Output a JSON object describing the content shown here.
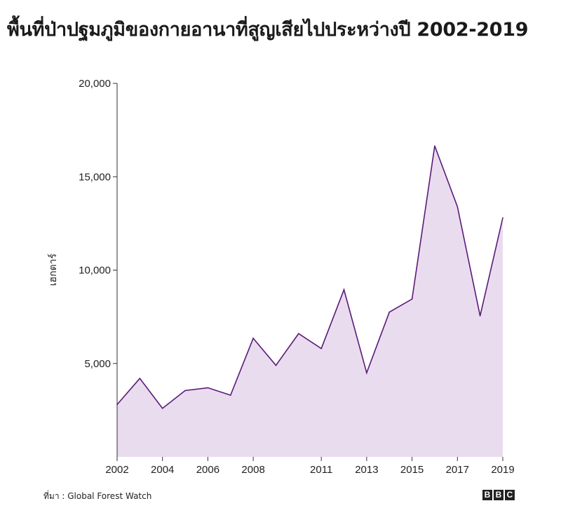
{
  "title": "พื้นที่ป่าปฐมภูมิของกายอานาที่สูญเสียไปประหว่างปี 2002-2019",
  "source": "ที่มา : Global Forest Watch",
  "logo": [
    "B",
    "B",
    "C"
  ],
  "colors": {
    "line": "#5b1a78",
    "fill": "#e9dcee",
    "axis": "#333333"
  },
  "chart_data": {
    "type": "area",
    "x": [
      2002,
      2003,
      2004,
      2005,
      2006,
      2007,
      2008,
      2009,
      2010,
      2011,
      2012,
      2013,
      2014,
      2015,
      2016,
      2017,
      2018,
      2019
    ],
    "values": [
      2800,
      4200,
      2600,
      3550,
      3700,
      3300,
      6350,
      4900,
      6600,
      5800,
      8950,
      4500,
      7750,
      8450,
      16650,
      13400,
      7550,
      12800
    ],
    "ylabel": "เฮกตาร์",
    "xlabel": "",
    "xlim": [
      2002,
      2019
    ],
    "ylim": [
      0,
      20000
    ],
    "yticks": [
      5000,
      10000,
      15000,
      20000
    ],
    "ytick_labels": [
      "5,000",
      "10,000",
      "15,000",
      "20,000"
    ],
    "xticks": [
      2002,
      2004,
      2006,
      2008,
      2011,
      2013,
      2015,
      2017,
      2019
    ],
    "grid": false
  }
}
